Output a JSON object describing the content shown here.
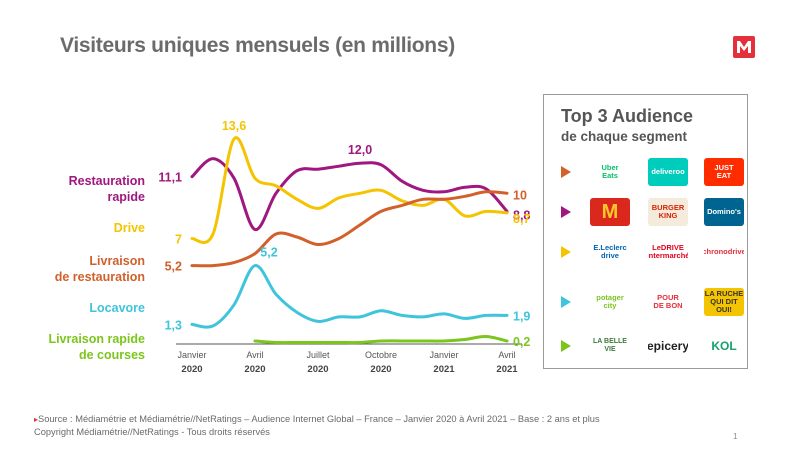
{
  "title": "Visiteurs uniques mensuels (en millions)",
  "logo": {
    "icon": "mediametrie-logo-icon",
    "color": "#e4303b"
  },
  "chart_data": {
    "type": "line",
    "title": "Visiteurs uniques mensuels (en millions)",
    "x": [
      "2020-01",
      "2020-02",
      "2020-03",
      "2020-04",
      "2020-05",
      "2020-06",
      "2020-07",
      "2020-08",
      "2020-09",
      "2020-10",
      "2020-11",
      "2020-12",
      "2021-01",
      "2021-02",
      "2021-03",
      "2021-04"
    ],
    "x_ticks": [
      {
        "month": "Janvier",
        "year": "2020",
        "index": 0
      },
      {
        "month": "Avril",
        "year": "2020",
        "index": 3
      },
      {
        "month": "Juillet",
        "year": "2020",
        "index": 6
      },
      {
        "month": "Octobre",
        "year": "2020",
        "index": 9
      },
      {
        "month": "Janvier",
        "year": "2021",
        "index": 12
      },
      {
        "month": "Avril",
        "year": "2021",
        "index": 15
      }
    ],
    "ylim": [
      0,
      14
    ],
    "grid": false,
    "series": [
      {
        "name": "Restauration rapide",
        "label_lines": [
          "Restauration",
          "rapide"
        ],
        "color": "#a0177f",
        "values": [
          11.1,
          12.3,
          11.0,
          7.6,
          10.0,
          11.5,
          11.6,
          11.8,
          12.0,
          11.9,
          10.8,
          10.2,
          10.1,
          10.4,
          10.3,
          8.8
        ],
        "start_label": "11,1",
        "end_label": "8,8",
        "peak": {
          "index": 8,
          "label": "12,0"
        }
      },
      {
        "name": "Drive",
        "label_lines": [
          "Drive"
        ],
        "color": "#f5c400",
        "values": [
          7.0,
          7.3,
          13.6,
          11.0,
          10.5,
          9.6,
          9.0,
          9.7,
          10.0,
          10.2,
          9.5,
          9.2,
          9.6,
          8.5,
          8.8,
          8.7
        ],
        "start_label": "7",
        "end_label": "8,7",
        "peak": {
          "index": 2,
          "label": "13,6"
        }
      },
      {
        "name": "Livraison de restauration",
        "label_lines": [
          "Livraison",
          "de restauration"
        ],
        "color": "#d2602b",
        "values": [
          5.2,
          5.2,
          5.4,
          6.0,
          7.3,
          7.1,
          6.6,
          7.0,
          7.9,
          8.8,
          9.2,
          9.6,
          9.6,
          9.8,
          10.1,
          10.0
        ],
        "start_label": "5,2",
        "end_label": "10"
      },
      {
        "name": "Locavore",
        "label_lines": [
          "Locavore"
        ],
        "color": "#3fc4dc",
        "values": [
          1.3,
          1.2,
          2.6,
          5.2,
          3.3,
          2.1,
          1.5,
          1.8,
          1.8,
          2.2,
          1.9,
          1.8,
          2.0,
          1.7,
          1.9,
          1.9
        ],
        "start_label": "1,3",
        "end_label": "1,9",
        "peak": {
          "index": 3,
          "label": "5,2"
        }
      },
      {
        "name": "Livraison rapide de courses",
        "label_lines": [
          "Livraison rapide",
          "de courses"
        ],
        "color": "#7cc51d",
        "values": [
          null,
          null,
          null,
          0.2,
          0.1,
          0.1,
          0.1,
          0.1,
          0.1,
          0.2,
          0.2,
          0.2,
          0.2,
          0.3,
          0.5,
          0.2
        ],
        "start_label": "",
        "end_label": "0,2"
      }
    ]
  },
  "panel": {
    "title": "Top 3 Audience",
    "subtitle": "de chaque segment",
    "rows": [
      {
        "color": "#d2602b",
        "brands": [
          {
            "text": "Uber\nEats",
            "bg": "#ffffff",
            "fg": "#06c167",
            "icon": "uber-eats-logo-icon"
          },
          {
            "text": "deliveroo",
            "bg": "#00ccbc",
            "fg": "#ffffff",
            "icon": "deliveroo-logo-icon"
          },
          {
            "text": "JUST\nEAT",
            "bg": "#ff2c00",
            "fg": "#ffffff",
            "icon": "just-eat-logo-icon"
          }
        ]
      },
      {
        "color": "#a0177f",
        "brands": [
          {
            "text": "M",
            "bg": "#da291c",
            "fg": "#ffc72c",
            "icon": "mcdonalds-logo-icon"
          },
          {
            "text": "BURGER\nKING",
            "bg": "#f5ebdc",
            "fg": "#d62300",
            "icon": "burger-king-logo-icon"
          },
          {
            "text": "Domino's",
            "bg": "#006491",
            "fg": "#ffffff",
            "icon": "dominos-logo-icon"
          }
        ]
      },
      {
        "color": "#f5c400",
        "brands": [
          {
            "text": "E.Leclerc\ndrive",
            "bg": "#ffffff",
            "fg": "#0066b3",
            "icon": "leclerc-drive-logo-icon"
          },
          {
            "text": "LeDRIVE\nIntermarché",
            "bg": "#ffffff",
            "fg": "#e2001a",
            "icon": "intermarche-drive-logo-icon"
          },
          {
            "text": "chronodrive",
            "bg": "#ffffff",
            "fg": "#e4303b",
            "icon": "chronodrive-logo-icon"
          }
        ]
      },
      {
        "color": "#3fc4dc",
        "brands": [
          {
            "text": "potager\ncity",
            "bg": "#ffffff",
            "fg": "#7cc51d",
            "icon": "potager-city-logo-icon"
          },
          {
            "text": "POUR\nDE BON",
            "bg": "#ffffff",
            "fg": "#e4303b",
            "icon": "pour-de-bon-logo-icon"
          },
          {
            "text": "LA RUCHE\nQUI DIT OUI!",
            "bg": "#f5c400",
            "fg": "#333333",
            "icon": "la-ruche-qui-dit-oui-logo-icon"
          }
        ]
      },
      {
        "color": "#7cc51d",
        "brands": [
          {
            "text": "LA BELLE VIE",
            "bg": "#ffffff",
            "fg": "#3a7a3a",
            "icon": "la-belle-vie-logo-icon"
          },
          {
            "text": "epicery",
            "bg": "#ffffff",
            "fg": "#222222",
            "icon": "epicery-logo-icon"
          },
          {
            "text": "KOL",
            "bg": "#ffffff",
            "fg": "#13a36b",
            "icon": "kol-logo-icon"
          }
        ]
      }
    ]
  },
  "footer": {
    "line1": "Source : Médiamétrie et Médiamétrie//NetRatings  – Audience Internet Global – France – Janvier 2020 à Avril 2021 – Base : 2 ans et plus",
    "line2": "Copyright Médiamétrie//NetRatings  - Tous droits réservés",
    "page": "1"
  }
}
